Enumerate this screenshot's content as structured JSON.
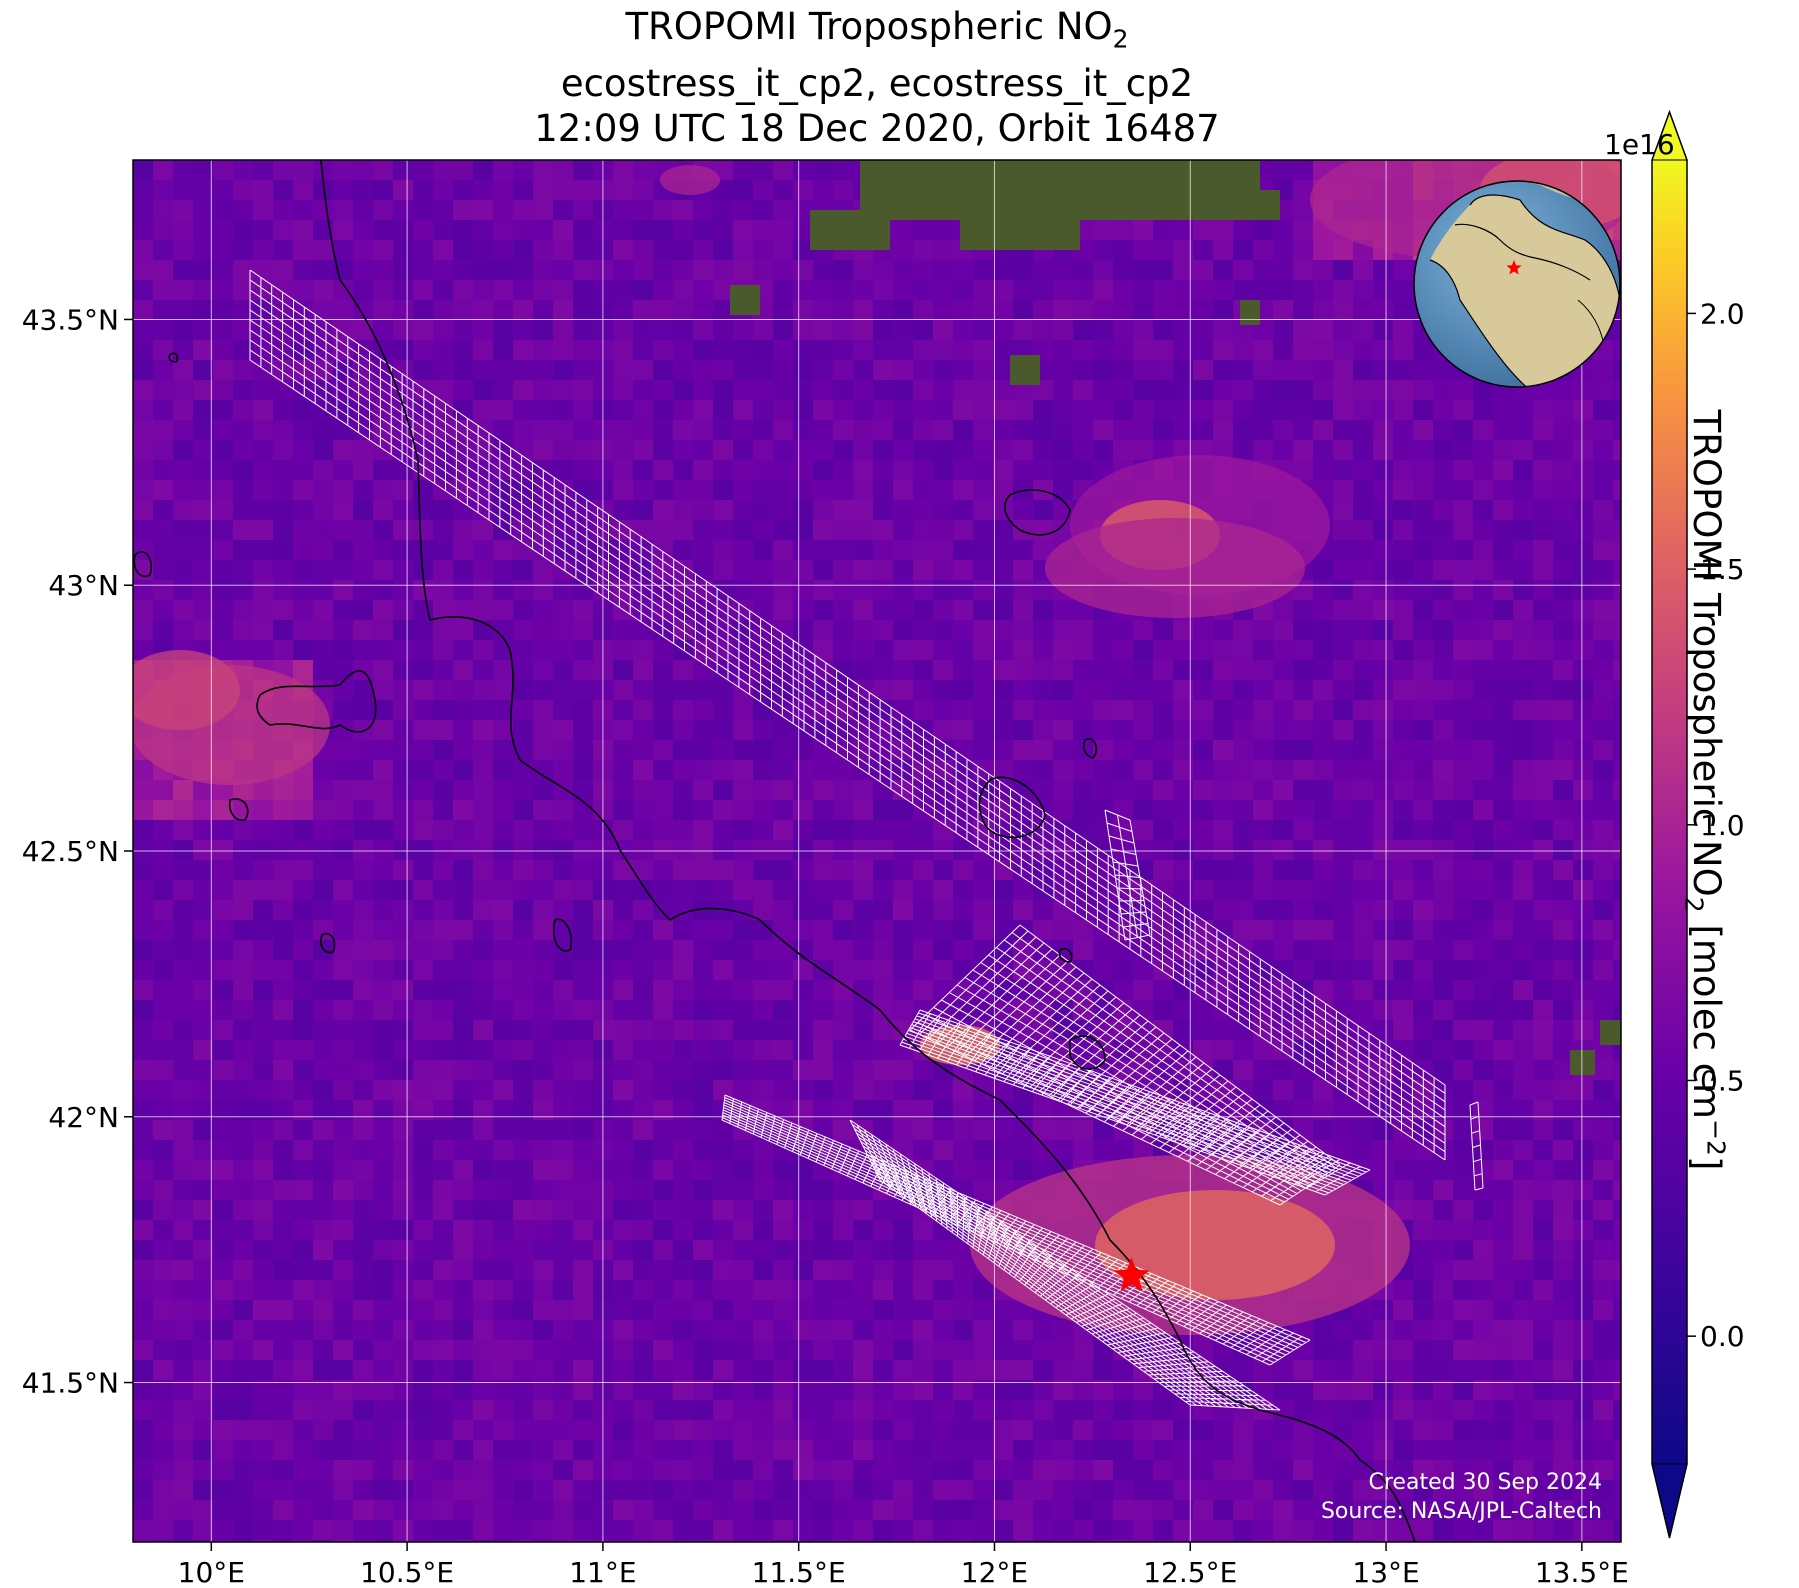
{
  "title": {
    "line1_main": "TROPOMI Tropospheric NO",
    "line1_sub": "2",
    "line2": "ecostress_it_cp2, ecostress_it_cp2",
    "line3": "12:09 UTC 18 Dec 2020, Orbit 16487"
  },
  "axes": {
    "lon_range": [
      9.8,
      13.6
    ],
    "lat_range": [
      41.2,
      43.8
    ],
    "x_ticks": [
      10.0,
      10.5,
      11.0,
      11.5,
      12.0,
      12.5,
      13.0,
      13.5
    ],
    "x_tick_labels": [
      "10°E",
      "10.5°E",
      "11°E",
      "11.5°E",
      "12°E",
      "12.5°E",
      "13°E",
      "13.5°E"
    ],
    "y_ticks": [
      41.5,
      42.0,
      42.5,
      43.0,
      43.5
    ],
    "y_tick_labels": [
      "41.5°N",
      "42°N",
      "42.5°N",
      "43°N",
      "43.5°N"
    ],
    "grid": true
  },
  "colorbar": {
    "label_main": "TROPOMI Tropospheric NO",
    "label_sub": "2",
    "label_units": " [molec cm",
    "label_sup": "−2",
    "label_end": "]",
    "exponent": "1e16",
    "range": [
      -0.25,
      2.3
    ],
    "ticks": [
      0.0,
      0.5,
      1.0,
      1.5,
      2.0
    ],
    "tick_labels": [
      "0.0",
      "0.5",
      "1.0",
      "1.5",
      "2.0"
    ],
    "colormap": "plasma",
    "extend": "both"
  },
  "marker": {
    "lon": 12.35,
    "lat": 41.7,
    "color": "#ff0000",
    "shape": "star"
  },
  "inset_globe": {
    "marker_color": "#ff0000"
  },
  "credits": {
    "created": "Created 30 Sep 2024",
    "source": "Source: NASA/JPL-Caltech"
  },
  "colors": {
    "background_field": "#5b0aa5",
    "coast": "#000000",
    "grid": "#ffffff",
    "swath": "#ffffff",
    "land_patch": "#4a5a2c"
  }
}
